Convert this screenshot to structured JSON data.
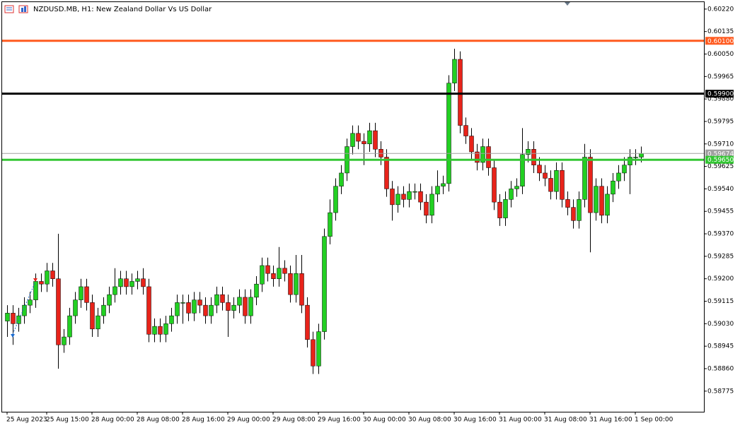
{
  "chart_data": {
    "type": "candlestick",
    "title": "NZDUSD.MB, H1:  New Zealand Dollar Vs US Dollar",
    "categories": [
      "25 Aug 2023",
      null,
      null,
      null,
      null,
      null,
      null,
      "25 Aug 15:00",
      null,
      null,
      null,
      null,
      null,
      null,
      null,
      "28 Aug 00:00",
      null,
      null,
      null,
      null,
      null,
      null,
      null,
      "28 Aug 08:00",
      null,
      null,
      null,
      null,
      null,
      null,
      null,
      "28 Aug 16:00",
      null,
      null,
      null,
      null,
      null,
      null,
      null,
      "29 Aug 00:00",
      null,
      null,
      null,
      null,
      null,
      null,
      null,
      "29 Aug 08:00",
      null,
      null,
      null,
      null,
      null,
      null,
      null,
      "29 Aug 16:00",
      null,
      null,
      null,
      null,
      null,
      null,
      null,
      "30 Aug 00:00",
      null,
      null,
      null,
      null,
      null,
      null,
      null,
      "30 Aug 08:00",
      null,
      null,
      null,
      null,
      null,
      null,
      null,
      "30 Aug 16:00",
      null,
      null,
      null,
      null,
      null,
      null,
      null,
      "31 Aug 00:00",
      null,
      null,
      null,
      null,
      null,
      null,
      null,
      "31 Aug 08:00",
      null,
      null,
      null,
      null,
      null,
      null,
      null,
      "31 Aug 16:00",
      null,
      null,
      null,
      null,
      null,
      null,
      null,
      "1 Sep 00:00",
      null
    ],
    "open": [
      0.5904,
      0.5907,
      0.5903,
      0.5906,
      0.591,
      0.5912,
      0.5919,
      0.5918,
      0.5923,
      0.592,
      0.5895,
      0.5898,
      0.5906,
      0.5912,
      0.5917,
      0.5911,
      0.5901,
      0.5906,
      0.591,
      0.5914,
      0.5917,
      0.592,
      0.5917,
      0.5919,
      0.592,
      0.5917,
      0.5899,
      0.5902,
      0.5899,
      0.5903,
      0.5906,
      0.5911,
      0.5911,
      0.5907,
      0.5912,
      0.591,
      0.5906,
      0.591,
      0.5914,
      0.5911,
      0.5908,
      0.591,
      0.5913,
      0.5906,
      0.5913,
      0.5918,
      0.5925,
      0.5922,
      0.592,
      0.5924,
      0.5922,
      0.5914,
      0.5922,
      0.591,
      0.5897,
      0.5887,
      0.59,
      0.5936,
      0.5945,
      0.5955,
      0.596,
      0.597,
      0.5975,
      0.5972,
      0.5971,
      0.5976,
      0.5969,
      0.5966,
      0.5954,
      0.5948,
      0.5952,
      0.595,
      0.5953,
      0.5953,
      0.5949,
      0.5944,
      0.5952,
      0.5955,
      0.5956,
      0.5994,
      0.6003,
      0.5978,
      0.5974,
      0.5968,
      0.5964,
      0.597,
      0.5962,
      0.5949,
      0.5943,
      0.595,
      0.5954,
      0.5955,
      0.5967,
      0.5969,
      0.5963,
      0.596,
      0.5958,
      0.5953,
      0.5961,
      0.595,
      0.5947,
      0.5942,
      0.595,
      0.5966,
      0.5945,
      0.5955,
      0.5944,
      0.5952,
      0.5957,
      0.596,
      0.5963,
      0.5966,
      0.5966
    ],
    "high": [
      0.591,
      0.591,
      0.5909,
      0.5913,
      0.5915,
      0.5922,
      0.5922,
      0.5926,
      0.5926,
      0.5937,
      0.5901,
      0.5909,
      0.5915,
      0.592,
      0.592,
      0.5914,
      0.5909,
      0.5913,
      0.5917,
      0.5924,
      0.5923,
      0.5923,
      0.5922,
      0.5923,
      0.5924,
      0.592,
      0.5905,
      0.5905,
      0.5906,
      0.5909,
      0.5914,
      0.5914,
      0.5914,
      0.5915,
      0.5915,
      0.5913,
      0.5913,
      0.5917,
      0.5917,
      0.5914,
      0.5913,
      0.5916,
      0.5916,
      0.5916,
      0.5921,
      0.5928,
      0.5928,
      0.5925,
      0.5932,
      0.5927,
      0.5925,
      0.5929,
      0.5929,
      0.5913,
      0.59,
      0.5903,
      0.5939,
      0.595,
      0.5958,
      0.5963,
      0.5973,
      0.5978,
      0.5978,
      0.5975,
      0.5979,
      0.5979,
      0.5972,
      0.5969,
      0.5957,
      0.5955,
      0.5955,
      0.5956,
      0.5956,
      0.5956,
      0.5952,
      0.5955,
      0.5961,
      0.5959,
      0.5997,
      0.6007,
      0.6006,
      0.5981,
      0.5977,
      0.5971,
      0.5973,
      0.5973,
      0.5965,
      0.5952,
      0.5953,
      0.5957,
      0.5958,
      0.5977,
      0.5972,
      0.5972,
      0.5966,
      0.5963,
      0.5961,
      0.5964,
      0.5964,
      0.5953,
      0.595,
      0.5953,
      0.5971,
      0.5969,
      0.5958,
      0.5958,
      0.5955,
      0.596,
      0.5963,
      0.5966,
      0.5969,
      0.5969,
      0.597
    ],
    "low": [
      0.5898,
      0.5895,
      0.59,
      0.5903,
      0.5907,
      0.5909,
      0.5915,
      0.5915,
      0.5917,
      0.5886,
      0.5892,
      0.5895,
      0.5903,
      0.5909,
      0.5908,
      0.5898,
      0.5898,
      0.5903,
      0.5907,
      0.5911,
      0.5914,
      0.5914,
      0.5914,
      0.5916,
      0.5914,
      0.5896,
      0.5896,
      0.5896,
      0.5896,
      0.59,
      0.5903,
      0.5903,
      0.5904,
      0.5904,
      0.5907,
      0.5903,
      0.5903,
      0.5907,
      0.5908,
      0.5898,
      0.5905,
      0.5907,
      0.5903,
      0.5903,
      0.591,
      0.5915,
      0.5919,
      0.5917,
      0.5917,
      0.5919,
      0.5911,
      0.5911,
      0.5907,
      0.5894,
      0.5884,
      0.5884,
      0.5897,
      0.5933,
      0.5942,
      0.5952,
      0.5957,
      0.5967,
      0.5969,
      0.5963,
      0.5968,
      0.5966,
      0.5963,
      0.5951,
      0.5942,
      0.5945,
      0.5947,
      0.5947,
      0.595,
      0.5946,
      0.5941,
      0.5941,
      0.5949,
      0.5952,
      0.5953,
      0.5991,
      0.5975,
      0.5971,
      0.5965,
      0.5961,
      0.5961,
      0.5959,
      0.5946,
      0.594,
      0.594,
      0.5947,
      0.5951,
      0.5952,
      0.5964,
      0.596,
      0.5957,
      0.5955,
      0.595,
      0.595,
      0.5947,
      0.5944,
      0.5939,
      0.5939,
      0.5947,
      0.593,
      0.5942,
      0.5941,
      0.5941,
      0.5949,
      0.5954,
      0.5957,
      0.5952,
      0.5963,
      0.5964
    ],
    "close": [
      0.5907,
      0.5903,
      0.5906,
      0.591,
      0.5912,
      0.5919,
      0.5918,
      0.5923,
      0.592,
      0.5895,
      0.5898,
      0.5906,
      0.5912,
      0.5917,
      0.5911,
      0.5901,
      0.5906,
      0.591,
      0.5914,
      0.5917,
      0.592,
      0.5917,
      0.5919,
      0.592,
      0.5917,
      0.5899,
      0.5902,
      0.5899,
      0.5903,
      0.5906,
      0.5911,
      0.5911,
      0.5907,
      0.5912,
      0.591,
      0.5906,
      0.591,
      0.5914,
      0.5911,
      0.5908,
      0.591,
      0.5913,
      0.5906,
      0.5913,
      0.5918,
      0.5925,
      0.5922,
      0.592,
      0.5924,
      0.5922,
      0.5914,
      0.5922,
      0.591,
      0.5897,
      0.5887,
      0.59,
      0.5936,
      0.5945,
      0.5955,
      0.596,
      0.597,
      0.5975,
      0.5972,
      0.5971,
      0.5976,
      0.5969,
      0.5966,
      0.5954,
      0.5948,
      0.5952,
      0.595,
      0.5953,
      0.5953,
      0.5949,
      0.5944,
      0.5952,
      0.5955,
      0.5956,
      0.5994,
      0.6003,
      0.5978,
      0.5974,
      0.5968,
      0.5964,
      0.597,
      0.5962,
      0.5949,
      0.5943,
      0.595,
      0.5954,
      0.5955,
      0.5967,
      0.5969,
      0.5963,
      0.596,
      0.5958,
      0.5953,
      0.5961,
      0.595,
      0.5947,
      0.5942,
      0.595,
      0.5966,
      0.5945,
      0.5955,
      0.5944,
      0.5952,
      0.5957,
      0.596,
      0.5963,
      0.5966,
      0.5966,
      0.59674
    ],
    "up_color": "#22d022",
    "down_color": "#e8231a",
    "ylim": [
      0.58697,
      0.60249
    ],
    "yticks": [
      {
        "value": 0.6022,
        "label": "0.60220"
      },
      0.60135,
      {
        "value": 0.6005,
        "label": "0.60050"
      },
      0.59965,
      {
        "value": 0.5988,
        "label": "0.59880"
      },
      0.59795,
      {
        "value": 0.5971,
        "label": "0.59710"
      },
      0.59625,
      {
        "value": 0.5954,
        "label": "0.59540"
      },
      0.59455,
      {
        "value": 0.5937,
        "label": "0.59370"
      },
      0.59285,
      {
        "value": 0.592,
        "label": "0.59200"
      },
      0.59115,
      {
        "value": 0.5903,
        "label": "0.59030"
      },
      0.58945,
      {
        "value": 0.5886,
        "label": "0.58860"
      },
      0.58775
    ],
    "levels": [
      {
        "value": 0.601,
        "label": "0.60100",
        "color": "#ff5a1f"
      },
      {
        "value": 0.599,
        "label": "0.59900",
        "color": "#000000"
      },
      {
        "value": 0.59674,
        "label": "0.59674",
        "color": "#a0a0a0"
      },
      {
        "value": 0.5965,
        "label": "0.59650",
        "color": "#33c633"
      }
    ]
  }
}
